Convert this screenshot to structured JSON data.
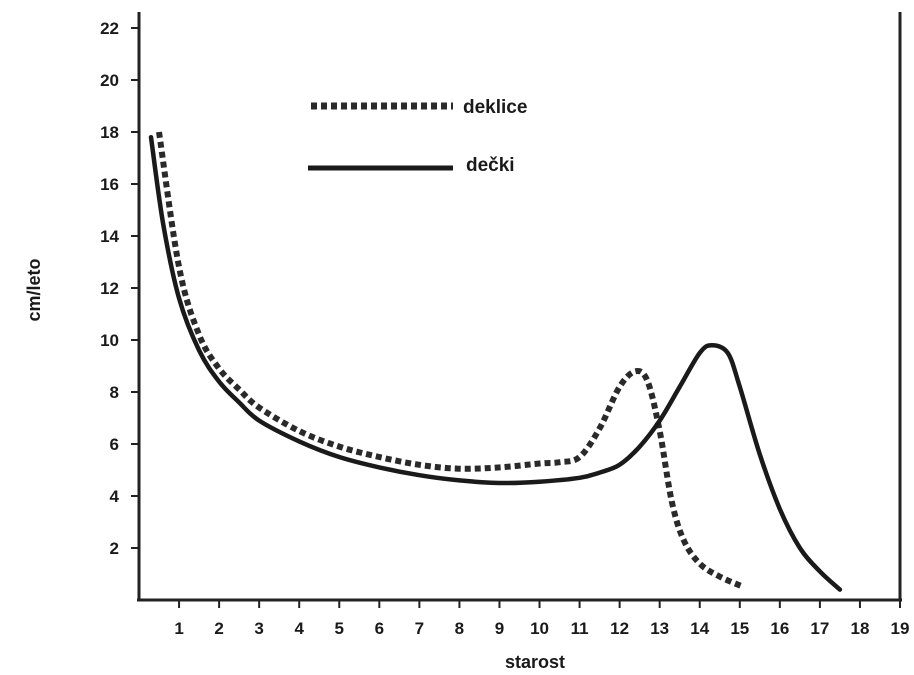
{
  "chart_data": {
    "type": "line",
    "title": "",
    "xlabel": "starost",
    "ylabel": "cm/leto",
    "xlim": [
      0,
      19
    ],
    "ylim": [
      0,
      23
    ],
    "x_ticks": [
      1,
      2,
      3,
      4,
      5,
      6,
      7,
      8,
      9,
      10,
      11,
      12,
      13,
      14,
      15,
      16,
      17,
      18,
      19
    ],
    "y_ticks": [
      2,
      4,
      6,
      8,
      10,
      12,
      14,
      16,
      18,
      20,
      22
    ],
    "grid": false,
    "legend_position": "top-center",
    "series": [
      {
        "name": "deklice",
        "style": "dotted",
        "color": "#2a2a2a",
        "x": [
          0.5,
          1,
          1.5,
          2,
          2.5,
          3,
          4,
          5,
          6,
          7,
          8,
          9,
          10,
          10.5,
          11,
          11.5,
          12,
          12.4,
          12.7,
          13,
          13.3,
          13.6,
          14,
          14.5,
          15.1
        ],
        "y": [
          18,
          12.8,
          10.2,
          8.9,
          8.1,
          7.4,
          6.5,
          5.9,
          5.5,
          5.2,
          5.05,
          5.1,
          5.25,
          5.3,
          5.5,
          6.6,
          8.2,
          8.8,
          8.4,
          6.5,
          3.8,
          2.3,
          1.4,
          0.9,
          0.5
        ]
      },
      {
        "name": "dečki",
        "style": "solid",
        "color": "#1a1a1a",
        "x": [
          0.3,
          0.6,
          1,
          1.5,
          2,
          2.5,
          3,
          4,
          5,
          6,
          7,
          8,
          9,
          10,
          11,
          11.5,
          12,
          12.5,
          13,
          13.5,
          14,
          14.3,
          14.7,
          15,
          15.5,
          16,
          16.5,
          17,
          17.5
        ],
        "y": [
          17.8,
          14.5,
          11.6,
          9.6,
          8.4,
          7.6,
          6.9,
          6.1,
          5.5,
          5.1,
          4.8,
          4.6,
          4.5,
          4.55,
          4.7,
          4.9,
          5.2,
          5.9,
          6.9,
          8.2,
          9.5,
          9.8,
          9.5,
          8.2,
          5.6,
          3.5,
          2.0,
          1.1,
          0.4
        ]
      }
    ]
  }
}
